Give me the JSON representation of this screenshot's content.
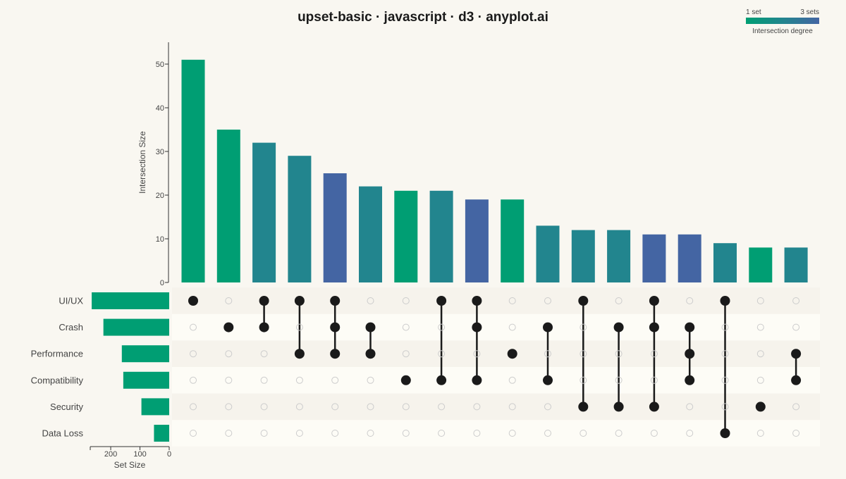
{
  "title": "upset-basic · javascript · d3 · anyplot.ai",
  "legend": {
    "min_label": "1 set",
    "max_label": "3 sets",
    "title": "Intersection degree",
    "colors": [
      "#009e73",
      "#22858e",
      "#4465a3"
    ]
  },
  "chart_data": {
    "type": "bar",
    "subtype": "upset",
    "ylabel": "Intersection Size",
    "ylim": [
      0,
      55
    ],
    "yticks": [
      0,
      10,
      20,
      30,
      40,
      50
    ],
    "sets": [
      "UI/UX",
      "Crash",
      "Performance",
      "Compatibility",
      "Security",
      "Data Loss"
    ],
    "set_sizes": [
      265,
      225,
      162,
      157,
      95,
      52
    ],
    "set_size_label": "Set Size",
    "set_size_ticks": [
      200,
      100,
      0
    ],
    "set_size_max": 270,
    "set_color": "#009e73",
    "intersections": [
      {
        "members": [
          0
        ],
        "size": 51
      },
      {
        "members": [
          1
        ],
        "size": 35
      },
      {
        "members": [
          0,
          1
        ],
        "size": 32
      },
      {
        "members": [
          0,
          2
        ],
        "size": 29
      },
      {
        "members": [
          0,
          1,
          2
        ],
        "size": 25
      },
      {
        "members": [
          1,
          2
        ],
        "size": 22
      },
      {
        "members": [
          3
        ],
        "size": 21
      },
      {
        "members": [
          0,
          3
        ],
        "size": 21
      },
      {
        "members": [
          0,
          1,
          3
        ],
        "size": 19
      },
      {
        "members": [
          2
        ],
        "size": 19
      },
      {
        "members": [
          1,
          3
        ],
        "size": 13
      },
      {
        "members": [
          0,
          4
        ],
        "size": 12
      },
      {
        "members": [
          1,
          4
        ],
        "size": 12
      },
      {
        "members": [
          0,
          1,
          4
        ],
        "size": 11
      },
      {
        "members": [
          1,
          2,
          3
        ],
        "size": 11
      },
      {
        "members": [
          0,
          5
        ],
        "size": 9
      },
      {
        "members": [
          4
        ],
        "size": 8
      },
      {
        "members": [
          2,
          3
        ],
        "size": 8
      }
    ]
  }
}
